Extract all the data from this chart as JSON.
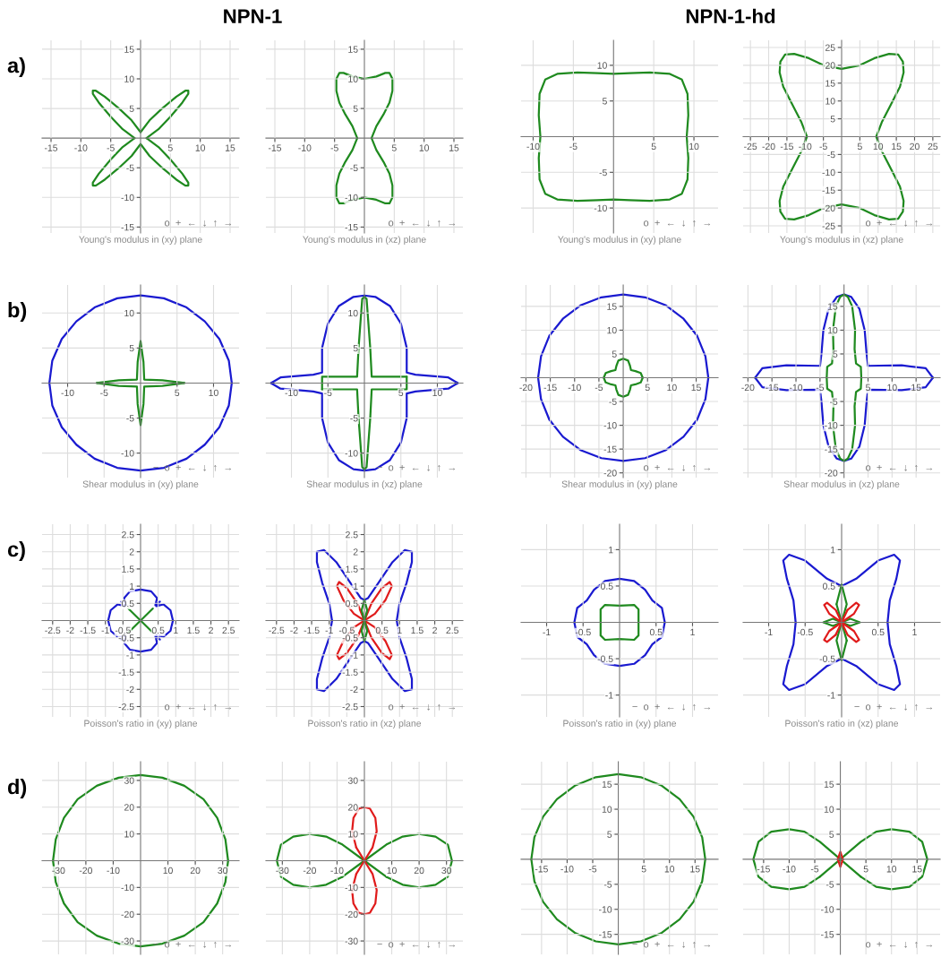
{
  "chart_data": [
    {
      "type": "line",
      "title": "NPN-1",
      "subtitle": "a)",
      "xlabel": "Young's modulus in (xy) plane",
      "annotations": [
        "o  +  ←  ↓  ↑  →"
      ],
      "grid": true,
      "xlim": [
        -16.5,
        16.5
      ],
      "ylim": [
        -16,
        16.5
      ],
      "xticks": [
        -15,
        -10,
        -5,
        5,
        10,
        15
      ],
      "yticks": [
        -15,
        -10,
        -5,
        5,
        10,
        15
      ],
      "series": [
        {
          "color": "#1f8a1f",
          "x": [
            1,
            3,
            5,
            7,
            8,
            8,
            7.5,
            6,
            3.6,
            1.5,
            0,
            -1.5,
            -3.6,
            -6,
            -7.5,
            -8,
            -8,
            -7,
            -5,
            -3,
            -1,
            -3,
            -5,
            -7,
            -8,
            -8,
            -7.5,
            -6,
            -3.6,
            -1.5,
            0,
            1.5,
            3.6,
            6,
            7.5,
            8,
            8,
            7,
            5,
            3,
            1
          ],
          "values": [
            0,
            1.5,
            3.6,
            6,
            7.5,
            8,
            8,
            7,
            5,
            3,
            1,
            3,
            5,
            7,
            8,
            8,
            7.5,
            6,
            3.6,
            1.5,
            0,
            -1.5,
            -3.6,
            -6,
            -7.5,
            -8,
            -8,
            -7,
            -5,
            -3,
            -1,
            -3,
            -5,
            -7,
            -8,
            -8,
            -7.5,
            -6,
            -3.6,
            -1.5,
            0
          ]
        }
      ]
    },
    {
      "type": "line",
      "xlabel": "Young's modulus in (xz) plane",
      "annotations": [
        "o  +  ←  ↓  ↑  →"
      ],
      "grid": true,
      "xlim": [
        -16.5,
        16.5
      ],
      "ylim": [
        -16,
        16.5
      ],
      "xticks": [
        -15,
        -10,
        -5,
        5,
        10,
        15
      ],
      "yticks": [
        -15,
        -10,
        -5,
        5,
        10,
        15
      ],
      "series": [
        {
          "color": "#1f8a1f",
          "x": [
            1.2,
            2,
            3.2,
            4.2,
            4.7,
            4.7,
            4.2,
            3.5,
            2,
            0,
            -2,
            -3.5,
            -4.2,
            -4.7,
            -4.7,
            -4.2,
            -3.2,
            -2,
            -1.2,
            -2,
            -3.2,
            -4.2,
            -4.7,
            -4.7,
            -4.2,
            -3.5,
            -2,
            0,
            2,
            3.5,
            4.2,
            4.7,
            4.7,
            4.2,
            3.2,
            2,
            1.2
          ],
          "values": [
            0,
            2,
            4,
            6,
            8,
            10,
            11,
            11,
            10.4,
            10,
            10.4,
            11,
            11,
            10,
            8,
            6,
            4,
            2,
            0,
            -2,
            -4,
            -6,
            -8,
            -10,
            -11,
            -11,
            -10.4,
            -10,
            -10.4,
            -11,
            -11,
            -10,
            -8,
            -6,
            -4,
            -2,
            0
          ]
        }
      ]
    },
    {
      "type": "line",
      "title": "NPN-1-hd",
      "xlabel": "Young's modulus in (xy) plane",
      "annotations": [
        "o  +  ←  ↓  ↑  →"
      ],
      "grid": true,
      "xlim": [
        -11.5,
        13
      ],
      "ylim": [
        -13.5,
        13.5
      ],
      "xticks": [
        -10,
        -5,
        5,
        10
      ],
      "yticks": [
        -10,
        -5,
        5,
        10
      ],
      "series": [
        {
          "color": "#1f8a1f",
          "x": [
            9.1,
            9.3,
            9.2,
            8.5,
            7,
            4.5,
            2,
            0,
            -2,
            -4.5,
            -7,
            -8.5,
            -9.2,
            -9.3,
            -9.1,
            -9.3,
            -9.2,
            -8.5,
            -7,
            -4.5,
            -2,
            0,
            2,
            4.5,
            7,
            8.5,
            9.2,
            9.3,
            9.1
          ],
          "values": [
            0,
            3,
            6,
            8,
            8.8,
            9,
            8.9,
            8.8,
            8.9,
            9,
            8.8,
            8,
            6,
            3,
            0,
            -3,
            -6,
            -8,
            -8.8,
            -9,
            -8.9,
            -8.8,
            -8.9,
            -9,
            -8.8,
            -8,
            -6,
            -3,
            0
          ]
        }
      ]
    },
    {
      "type": "line",
      "xlabel": "Young's modulus in (xz) plane",
      "annotations": [
        "o  +  ←  ↓  ↑  →"
      ],
      "grid": true,
      "xlim": [
        -27,
        27
      ],
      "ylim": [
        -27,
        27
      ],
      "xticks": [
        -25,
        -20,
        -15,
        -10,
        -5,
        5,
        10,
        15,
        20,
        25
      ],
      "yticks": [
        -25,
        -20,
        -15,
        -10,
        -5,
        5,
        10,
        15,
        20,
        25
      ],
      "series": [
        {
          "color": "#1f8a1f",
          "x": [
            9.5,
            11,
            13.5,
            16,
            17,
            16.8,
            15.5,
            13,
            9,
            5,
            0,
            -5,
            -9,
            -13,
            -15.5,
            -16.8,
            -17,
            -16,
            -13.5,
            -11,
            -9.5,
            -11,
            -13.5,
            -16,
            -17,
            -16.8,
            -15.5,
            -13,
            -9,
            -5,
            0,
            5,
            9,
            13,
            15.5,
            16.8,
            17,
            16,
            13.5,
            11,
            9.5
          ],
          "values": [
            0,
            4,
            9,
            14,
            18,
            21,
            23,
            23.2,
            22,
            20,
            19,
            20,
            22,
            23.2,
            23,
            21,
            18,
            14,
            9,
            4,
            0,
            -4,
            -9,
            -14,
            -18,
            -21,
            -23,
            -23.2,
            -22,
            -20,
            -19,
            -20,
            -22,
            -23.2,
            -23,
            -21,
            -18,
            -14,
            -9,
            -4,
            0
          ]
        }
      ]
    },
    {
      "type": "line",
      "subtitle": "b)",
      "xlabel": "Shear modulus in (xy) plane",
      "annotations": [
        "−  o  +  ←  ↓  ↑  →"
      ],
      "grid": true,
      "xlim": [
        -13.5,
        13.5
      ],
      "ylim": [
        -13.5,
        14
      ],
      "xticks": [
        -10,
        -5,
        5,
        10
      ],
      "yticks": [
        -10,
        -5,
        5,
        10
      ],
      "series": [
        {
          "color": "#1a1ad0",
          "x": [
            12.5,
            12.1,
            10.8,
            8.8,
            6.3,
            3.2,
            0,
            -3.2,
            -6.3,
            -8.8,
            -10.8,
            -12.1,
            -12.5,
            -12.1,
            -10.8,
            -8.8,
            -6.3,
            -3.2,
            0,
            3.2,
            6.3,
            8.8,
            10.8,
            12.1,
            12.5
          ],
          "values": [
            0,
            3.2,
            6.3,
            8.8,
            10.8,
            12.1,
            12.5,
            12.1,
            10.8,
            8.8,
            6.3,
            3.2,
            0,
            -3.2,
            -6.3,
            -8.8,
            -10.8,
            -12.1,
            -12.5,
            -12.1,
            -10.8,
            -8.8,
            -6.3,
            -3.2,
            0
          ]
        },
        {
          "color": "#1f8a1f",
          "x": [
            6,
            3,
            0.5,
            0.4,
            0,
            -0.4,
            -0.5,
            -3,
            -6,
            -3,
            -0.5,
            -0.4,
            0,
            0.4,
            0.5,
            3,
            6
          ],
          "values": [
            0,
            0.4,
            0.5,
            3,
            6,
            3,
            0.5,
            0.4,
            0,
            -0.4,
            -0.5,
            -3,
            -6,
            -3,
            -0.5,
            -0.4,
            0
          ]
        }
      ]
    },
    {
      "type": "line",
      "xlabel": "Shear modulus in (xz) plane",
      "annotations": [
        "−  o  +  ←  ↓  ↑  →"
      ],
      "grid": true,
      "xlim": [
        -13.5,
        13.5
      ],
      "ylim": [
        -13.5,
        14
      ],
      "xticks": [
        -10,
        -5,
        5,
        10
      ],
      "yticks": [
        -10,
        -5,
        5,
        10
      ],
      "series": [
        {
          "color": "#1a1ad0",
          "x": [
            12.8,
            11.5,
            7,
            5.8,
            5.8,
            5,
            3.5,
            1.5,
            0,
            -1.5,
            -3.5,
            -5,
            -5.8,
            -5.8,
            -7,
            -11.5,
            -12.8,
            -11.5,
            -7,
            -5.8,
            -5.8,
            -5,
            -3.5,
            -1.5,
            0,
            1.5,
            3.5,
            5,
            5.8,
            5.8,
            7,
            11.5,
            12.8
          ],
          "values": [
            0,
            0.8,
            1.2,
            1.5,
            5,
            8.5,
            11,
            12.3,
            12.5,
            12.3,
            11,
            8.5,
            5,
            1.5,
            1.2,
            0.8,
            0,
            -0.8,
            -1.2,
            -1.5,
            -5,
            -8.5,
            -11,
            -12.3,
            -12.5,
            -12.3,
            -11,
            -8.5,
            -5,
            -1.5,
            -1.2,
            -0.8,
            0
          ]
        },
        {
          "color": "#1f8a1f",
          "x": [
            5.8,
            1,
            0.8,
            0.3,
            0,
            -0.3,
            -0.8,
            -1,
            -5.8,
            -5.8,
            -1,
            -0.8,
            -0.3,
            0,
            0.3,
            0.8,
            1,
            5.8,
            5.8
          ],
          "values": [
            0.9,
            0.9,
            5,
            12,
            12.3,
            12,
            5,
            0.9,
            0.9,
            -0.9,
            -0.9,
            -5,
            -12,
            -12.3,
            -12,
            -5,
            -0.9,
            -0.9,
            0.9
          ]
        }
      ]
    },
    {
      "type": "line",
      "xlabel": "Shear modulus in (xy) plane",
      "annotations": [
        "o  +  ←  ↓  ↑  →"
      ],
      "grid": true,
      "xlim": [
        -21,
        19.5
      ],
      "ylim": [
        -21,
        19.5
      ],
      "xticks": [
        -20,
        -15,
        -10,
        -5,
        5,
        10,
        15
      ],
      "yticks": [
        -20,
        -15,
        -10,
        -5,
        5,
        10,
        15
      ],
      "series": [
        {
          "color": "#1a1ad0",
          "x": [
            17.5,
            16.9,
            15.2,
            12.4,
            8.8,
            4.5,
            0,
            -4.5,
            -8.8,
            -12.4,
            -15.2,
            -16.9,
            -17.5,
            -16.9,
            -15.2,
            -12.4,
            -8.8,
            -4.5,
            0,
            4.5,
            8.8,
            12.4,
            15.2,
            16.9,
            17.5
          ],
          "values": [
            0,
            4.5,
            8.8,
            12.4,
            15.2,
            16.9,
            17.5,
            16.9,
            15.2,
            12.4,
            8.8,
            4.5,
            0,
            -4.5,
            -8.8,
            -12.4,
            -15.2,
            -16.9,
            -17.5,
            -16.9,
            -15.2,
            -12.4,
            -8.8,
            -4.5,
            0
          ]
        },
        {
          "color": "#1f8a1f",
          "x": [
            4,
            3.6,
            2.5,
            1.6,
            1.4,
            1,
            0,
            -1,
            -1.4,
            -1.6,
            -2.5,
            -3.6,
            -4,
            -3.6,
            -2.5,
            -1.6,
            -1.4,
            -1,
            0,
            1,
            1.4,
            1.6,
            2.5,
            3.6,
            4
          ],
          "values": [
            0,
            1,
            1.4,
            1.6,
            2.5,
            3.6,
            4,
            3.6,
            2.5,
            1.6,
            1.4,
            1,
            0,
            -1,
            -1.4,
            -1.6,
            -2.5,
            -3.6,
            -4,
            -3.6,
            -2.5,
            -1.6,
            -1.4,
            -1,
            0
          ]
        }
      ]
    },
    {
      "type": "line",
      "xlabel": "Shear modulus in (xz) plane",
      "annotations": [
        "o  +  ←  ↓  ↑  →"
      ],
      "grid": true,
      "xlim": [
        -21,
        20
      ],
      "ylim": [
        -21,
        19.5
      ],
      "xticks": [
        -20,
        -15,
        -10,
        -5,
        5,
        10,
        15
      ],
      "yticks": [
        -20,
        -15,
        -10,
        -5,
        5,
        10,
        15
      ],
      "series": [
        {
          "color": "#1a1ad0",
          "x": [
            18.5,
            17,
            12,
            5,
            4.7,
            4.3,
            3.2,
            1.5,
            0,
            -1.5,
            -3.2,
            -4.3,
            -4.7,
            -5,
            -12,
            -17,
            -18.5,
            -17,
            -12,
            -5,
            -4.7,
            -4.3,
            -3.2,
            -1.5,
            0,
            1.5,
            3.2,
            4.3,
            4.7,
            5,
            12,
            17,
            18.5
          ],
          "values": [
            0,
            2,
            2.6,
            2.5,
            5,
            10,
            14.5,
            17,
            17.5,
            17,
            14.5,
            10,
            5,
            2.5,
            2.6,
            2,
            0,
            -2,
            -2.6,
            -2.5,
            -5,
            -10,
            -14.5,
            -17,
            -17.5,
            -17,
            -14.5,
            -10,
            -5,
            -2.5,
            -2.6,
            -2,
            0
          ]
        },
        {
          "color": "#1f8a1f",
          "x": [
            3.6,
            3.5,
            2.5,
            2.2,
            2.3,
            1.7,
            0.8,
            0,
            -0.8,
            -1.7,
            -2.3,
            -2.2,
            -2.5,
            -3.5,
            -3.6,
            -3.5,
            -2.5,
            -2.2,
            -2.3,
            -1.7,
            -0.8,
            0,
            0.8,
            1.7,
            2.3,
            2.2,
            2.5,
            3.5,
            3.6
          ],
          "values": [
            0,
            2.3,
            3,
            6,
            10,
            15,
            17,
            17.5,
            17,
            15,
            10,
            6,
            3,
            2.3,
            0,
            -2.3,
            -3,
            -6,
            -10,
            -15,
            -17,
            -17.5,
            -17,
            -15,
            -10,
            -6,
            -3,
            -2.3,
            0
          ]
        }
      ]
    },
    {
      "type": "line",
      "subtitle": "c)",
      "xlabel": "Poisson's ratio in (xy) plane",
      "annotations": [
        "o  +  ←  ↓  ↑  →"
      ],
      "grid": true,
      "xlim": [
        -2.8,
        2.8
      ],
      "ylim": [
        -2.8,
        2.8
      ],
      "xticks": [
        -2.5,
        -2,
        -1.5,
        -1,
        -0.5,
        0.5,
        1,
        1.5,
        2,
        2.5
      ],
      "yticks": [
        -2.5,
        -2,
        -1.5,
        -1,
        -0.5,
        0.5,
        1,
        1.5,
        2,
        2.5
      ],
      "series": [
        {
          "color": "#1a1ad0",
          "x": [
            0.92,
            0.85,
            0.65,
            0.45,
            0.55,
            0.42,
            0.47,
            0.3,
            0,
            -0.3,
            -0.47,
            -0.42,
            -0.55,
            -0.45,
            -0.65,
            -0.85,
            -0.92,
            -0.85,
            -0.65,
            -0.45,
            -0.55,
            -0.42,
            -0.47,
            -0.3,
            0,
            0.3,
            0.47,
            0.42,
            0.55,
            0.45,
            0.65,
            0.85,
            0.92
          ],
          "values": [
            0,
            0.3,
            0.47,
            0.42,
            0.55,
            0.45,
            0.65,
            0.85,
            0.9,
            0.85,
            0.65,
            0.45,
            0.55,
            0.42,
            0.47,
            0.3,
            0,
            -0.3,
            -0.47,
            -0.42,
            -0.55,
            -0.45,
            -0.65,
            -0.85,
            -0.9,
            -0.85,
            -0.65,
            -0.45,
            -0.55,
            -0.42,
            -0.47,
            -0.3,
            0
          ]
        },
        {
          "color": "#1f8a1f",
          "x": [
            0.35,
            -0.35,
            0,
            -0.35,
            0.35
          ],
          "values": [
            0.35,
            -0.35,
            0,
            0.35,
            -0.35
          ]
        }
      ]
    },
    {
      "type": "line",
      "xlabel": "Poisson's ratio in (xz) plane",
      "annotations": [
        "o  +  ←  ↓  ↑  →"
      ],
      "grid": true,
      "xlim": [
        -2.8,
        2.8
      ],
      "ylim": [
        -2.8,
        2.8
      ],
      "xticks": [
        -2.5,
        -2,
        -1.5,
        -1,
        -0.5,
        0.5,
        1,
        1.5,
        2,
        2.5
      ],
      "yticks": [
        -2.5,
        -2,
        -1.5,
        -1,
        -0.5,
        0.5,
        1,
        1.5,
        2,
        2.5
      ],
      "series": [
        {
          "color": "#1a1ad0",
          "x": [
            0.92,
            1,
            1.2,
            1.35,
            1.35,
            1.15,
            0.8,
            0.4,
            0.1,
            0,
            -0.1,
            -0.4,
            -0.8,
            -1.15,
            -1.35,
            -1.35,
            -1.2,
            -1,
            -0.92,
            -1,
            -1.2,
            -1.35,
            -1.35,
            -1.15,
            -0.8,
            -0.4,
            -0.1,
            0,
            0.1,
            0.4,
            0.8,
            1.15,
            1.35,
            1.35,
            1.2,
            1,
            0.92
          ],
          "values": [
            0,
            0.5,
            1.1,
            1.7,
            2,
            2.05,
            1.7,
            1.1,
            0.65,
            0.6,
            0.65,
            1.1,
            1.7,
            2.05,
            2,
            1.7,
            1.1,
            0.5,
            0,
            -0.5,
            -1.1,
            -1.7,
            -2,
            -2.05,
            -1.7,
            -1.1,
            -0.65,
            -0.6,
            -0.65,
            -1.1,
            -1.7,
            -2.05,
            -2,
            -1.7,
            -1.1,
            -0.5,
            0
          ]
        },
        {
          "color": "#e01b1b",
          "x": [
            0,
            0.3,
            0.6,
            0.78,
            0.72,
            0.5,
            0.2,
            0,
            -0.2,
            -0.5,
            -0.72,
            -0.78,
            -0.6,
            -0.3,
            0,
            -0.3,
            -0.6,
            -0.78,
            -0.72,
            -0.5,
            -0.2,
            0,
            0.2,
            0.5,
            0.72,
            0.78,
            0.6,
            0.3,
            0
          ],
          "values": [
            0,
            0.2,
            0.6,
            1,
            1.12,
            0.95,
            0.5,
            0,
            0.5,
            0.95,
            1.12,
            1,
            0.6,
            0.2,
            0,
            -0.2,
            -0.6,
            -1,
            -1.12,
            -0.95,
            -0.5,
            0,
            -0.5,
            -0.95,
            -1.12,
            -1,
            -0.6,
            -0.2,
            0
          ]
        },
        {
          "color": "#1f8a1f",
          "x": [
            0,
            0.08,
            0,
            -0.08,
            0,
            0.08,
            0,
            -0.08,
            0
          ],
          "values": [
            0,
            0.3,
            0.6,
            0.3,
            0,
            -0.3,
            -0.6,
            -0.3,
            0
          ]
        }
      ]
    },
    {
      "type": "line",
      "xlabel": "Poisson's ratio in (xy) plane",
      "annotations": [
        "−  o  +  ←  ↓  ↑  →"
      ],
      "grid": true,
      "xlim": [
        -1.35,
        1.35
      ],
      "ylim": [
        -1.3,
        1.35
      ],
      "xticks": [
        -1,
        -0.5,
        0.5,
        1
      ],
      "yticks": [
        -1,
        -0.5,
        0.5,
        1
      ],
      "series": [
        {
          "color": "#1a1ad0",
          "x": [
            0.62,
            0.58,
            0.45,
            0.35,
            0.2,
            0,
            -0.2,
            -0.35,
            -0.45,
            -0.58,
            -0.62,
            -0.58,
            -0.45,
            -0.35,
            -0.2,
            0,
            0.2,
            0.35,
            0.45,
            0.58,
            0.62
          ],
          "values": [
            0,
            0.2,
            0.3,
            0.45,
            0.57,
            0.6,
            0.57,
            0.45,
            0.3,
            0.2,
            0,
            -0.2,
            -0.3,
            -0.45,
            -0.57,
            -0.6,
            -0.57,
            -0.45,
            -0.3,
            -0.2,
            0
          ]
        },
        {
          "color": "#1f8a1f",
          "x": [
            0.26,
            0.26,
            0.2,
            0,
            -0.2,
            -0.26,
            -0.26,
            -0.26,
            -0.2,
            0,
            0.2,
            0.26,
            0.26
          ],
          "values": [
            0,
            0.18,
            0.24,
            0.23,
            0.24,
            0.18,
            0,
            -0.18,
            -0.24,
            -0.23,
            -0.24,
            -0.18,
            0
          ]
        }
      ]
    },
    {
      "type": "line",
      "xlabel": "Poisson's ratio in (xz) plane",
      "annotations": [
        "−  o  +  ←  ↓  ↑  →"
      ],
      "grid": true,
      "xlim": [
        -1.35,
        1.35
      ],
      "ylim": [
        -1.3,
        1.35
      ],
      "xticks": [
        -1,
        -0.5,
        0.5,
        1
      ],
      "yticks": [
        -1,
        -0.5,
        0.5,
        1
      ],
      "series": [
        {
          "color": "#1a1ad0",
          "x": [
            0.63,
            0.66,
            0.75,
            0.8,
            0.72,
            0.5,
            0.2,
            0,
            -0.2,
            -0.5,
            -0.72,
            -0.8,
            -0.75,
            -0.66,
            -0.63,
            -0.66,
            -0.75,
            -0.8,
            -0.72,
            -0.5,
            -0.2,
            0,
            0.2,
            0.5,
            0.72,
            0.8,
            0.75,
            0.66,
            0.63
          ],
          "values": [
            0,
            0.3,
            0.6,
            0.85,
            0.93,
            0.85,
            0.6,
            0.5,
            0.6,
            0.85,
            0.93,
            0.85,
            0.6,
            0.3,
            0,
            -0.3,
            -0.6,
            -0.85,
            -0.93,
            -0.85,
            -0.6,
            -0.5,
            -0.6,
            -0.85,
            -0.93,
            -0.85,
            -0.6,
            -0.3,
            0
          ]
        },
        {
          "color": "#1f8a1f",
          "x": [
            0,
            0.07,
            0,
            -0.07,
            0,
            -0.12,
            -0.25,
            -0.12,
            0,
            -0.07,
            0,
            0.07,
            0,
            0.12,
            0.25,
            0.12,
            0
          ],
          "values": [
            0,
            0.25,
            0.52,
            0.25,
            0,
            0.05,
            0,
            -0.05,
            0,
            -0.25,
            -0.52,
            -0.25,
            0,
            -0.05,
            0,
            0.05,
            0
          ]
        },
        {
          "color": "#e01b1b",
          "x": [
            0,
            0.17,
            0.24,
            0.2,
            0.08,
            0,
            -0.08,
            -0.2,
            -0.24,
            -0.17,
            0,
            -0.17,
            -0.24,
            -0.2,
            -0.08,
            0,
            0.08,
            0.2,
            0.24,
            0.17,
            0
          ],
          "values": [
            0,
            0.12,
            0.24,
            0.27,
            0.17,
            0,
            0.17,
            0.27,
            0.24,
            0.12,
            0,
            -0.12,
            -0.24,
            -0.27,
            -0.17,
            0,
            -0.17,
            -0.27,
            -0.24,
            -0.12,
            0
          ]
        }
      ]
    },
    {
      "type": "line",
      "subtitle": "d)",
      "annotations": [
        "−  o  +  ←  ↓  ↑  →"
      ],
      "grid": true,
      "xlim": [
        -36,
        36
      ],
      "ylim": [
        -35,
        37
      ],
      "xticks": [
        -30,
        -20,
        -10,
        10,
        20,
        30
      ],
      "yticks": [
        -30,
        -20,
        -10,
        10,
        20,
        30
      ],
      "series": [
        {
          "color": "#1f8a1f",
          "x": [
            32,
            31,
            28,
            23,
            16,
            8,
            0,
            -8,
            -16,
            -23,
            -28,
            -31,
            -32,
            -31,
            -28,
            -23,
            -16,
            -8,
            0,
            8,
            16,
            23,
            28,
            31,
            32
          ],
          "values": [
            0,
            8,
            16,
            23,
            28,
            31,
            32,
            31,
            28,
            23,
            16,
            8,
            0,
            -8,
            -16,
            -23,
            -28,
            -31,
            -32,
            -31,
            -28,
            -23,
            -16,
            -8,
            0
          ]
        }
      ]
    },
    {
      "type": "line",
      "annotations": [
        "−  o  +  ←  ↓  ↑  →"
      ],
      "grid": true,
      "xlim": [
        -36,
        36
      ],
      "ylim": [
        -35,
        37
      ],
      "xticks": [
        -30,
        -20,
        -10,
        10,
        20,
        30
      ],
      "yticks": [
        -30,
        -20,
        -10,
        10,
        20,
        30
      ],
      "series": [
        {
          "color": "#1f8a1f",
          "x": [
            0,
            8,
            14,
            20,
            26,
            30.5,
            32,
            30.5,
            26,
            20,
            14,
            8,
            0,
            -8,
            -14,
            -20,
            -26,
            -30.5,
            -32,
            -30.5,
            -26,
            -20,
            -14,
            -8,
            0
          ],
          "values": [
            0,
            6,
            9,
            10,
            9,
            6,
            0,
            -6,
            -9,
            -10,
            -9,
            -6,
            0,
            6,
            9,
            10,
            9,
            6,
            0,
            -6,
            -9,
            -10,
            -9,
            -6,
            0
          ]
        },
        {
          "color": "#e01b1b",
          "x": [
            0,
            3,
            4.5,
            4,
            2,
            0,
            -2,
            -4,
            -4.5,
            -3,
            0,
            3,
            4.5,
            4,
            2,
            0,
            -2,
            -4,
            -4.5,
            -3,
            0
          ],
          "values": [
            0,
            5,
            11,
            16,
            19.5,
            20,
            19.5,
            16,
            11,
            5,
            0,
            -5,
            -11,
            -16,
            -19.5,
            -20,
            -19.5,
            -16,
            -11,
            -5,
            0
          ]
        }
      ]
    },
    {
      "type": "line",
      "annotations": [
        "−  o  +  ←  ↓  ↑  →"
      ],
      "grid": true,
      "xlim": [
        -19,
        19.5
      ],
      "ylim": [
        -19,
        19.5
      ],
      "xticks": [
        -15,
        -10,
        -5,
        5,
        10,
        15
      ],
      "yticks": [
        -15,
        -10,
        -5,
        5,
        10,
        15
      ],
      "series": [
        {
          "color": "#1f8a1f",
          "x": [
            17,
            16.4,
            14.7,
            12,
            8.5,
            4.4,
            0,
            -4.4,
            -8.5,
            -12,
            -14.7,
            -16.4,
            -17,
            -16.4,
            -14.7,
            -12,
            -8.5,
            -4.4,
            0,
            4.4,
            8.5,
            12,
            14.7,
            16.4,
            17
          ],
          "values": [
            0,
            4.4,
            8.5,
            12,
            14.7,
            16.4,
            17,
            16.4,
            14.7,
            12,
            8.5,
            4.4,
            0,
            -4.4,
            -8.5,
            -12,
            -14.7,
            -16.4,
            -17,
            -16.4,
            -14.7,
            -12,
            -8.5,
            -4.4,
            0
          ]
        }
      ]
    },
    {
      "type": "line",
      "annotations": [
        "o  +  ←  ↓  ↑  →"
      ],
      "grid": true,
      "xlim": [
        -19,
        19.5
      ],
      "ylim": [
        -19,
        19.5
      ],
      "xticks": [
        -15,
        -10,
        -5,
        5,
        10,
        15
      ],
      "yticks": [
        -15,
        -10,
        -5,
        5,
        10,
        15
      ],
      "series": [
        {
          "color": "#1f8a1f",
          "x": [
            0,
            4,
            7,
            10,
            13.5,
            16,
            17,
            16,
            13.5,
            10,
            7,
            4,
            0,
            -4,
            -7,
            -10,
            -13.5,
            -16,
            -17,
            -16,
            -13.5,
            -10,
            -7,
            -4,
            0
          ],
          "values": [
            0,
            3.5,
            5.5,
            6,
            5.5,
            3.5,
            0,
            -3.5,
            -5.5,
            -6,
            -5.5,
            -3.5,
            0,
            3.5,
            5.5,
            6,
            5.5,
            3.5,
            0,
            -3.5,
            -5.5,
            -6,
            -5.5,
            -3.5,
            0
          ]
        },
        {
          "color": "#e01b1b",
          "x": [
            0.5,
            0,
            -0.5,
            0,
            0.5
          ],
          "values": [
            0,
            1.5,
            0,
            -1.5,
            0
          ]
        }
      ]
    }
  ]
}
